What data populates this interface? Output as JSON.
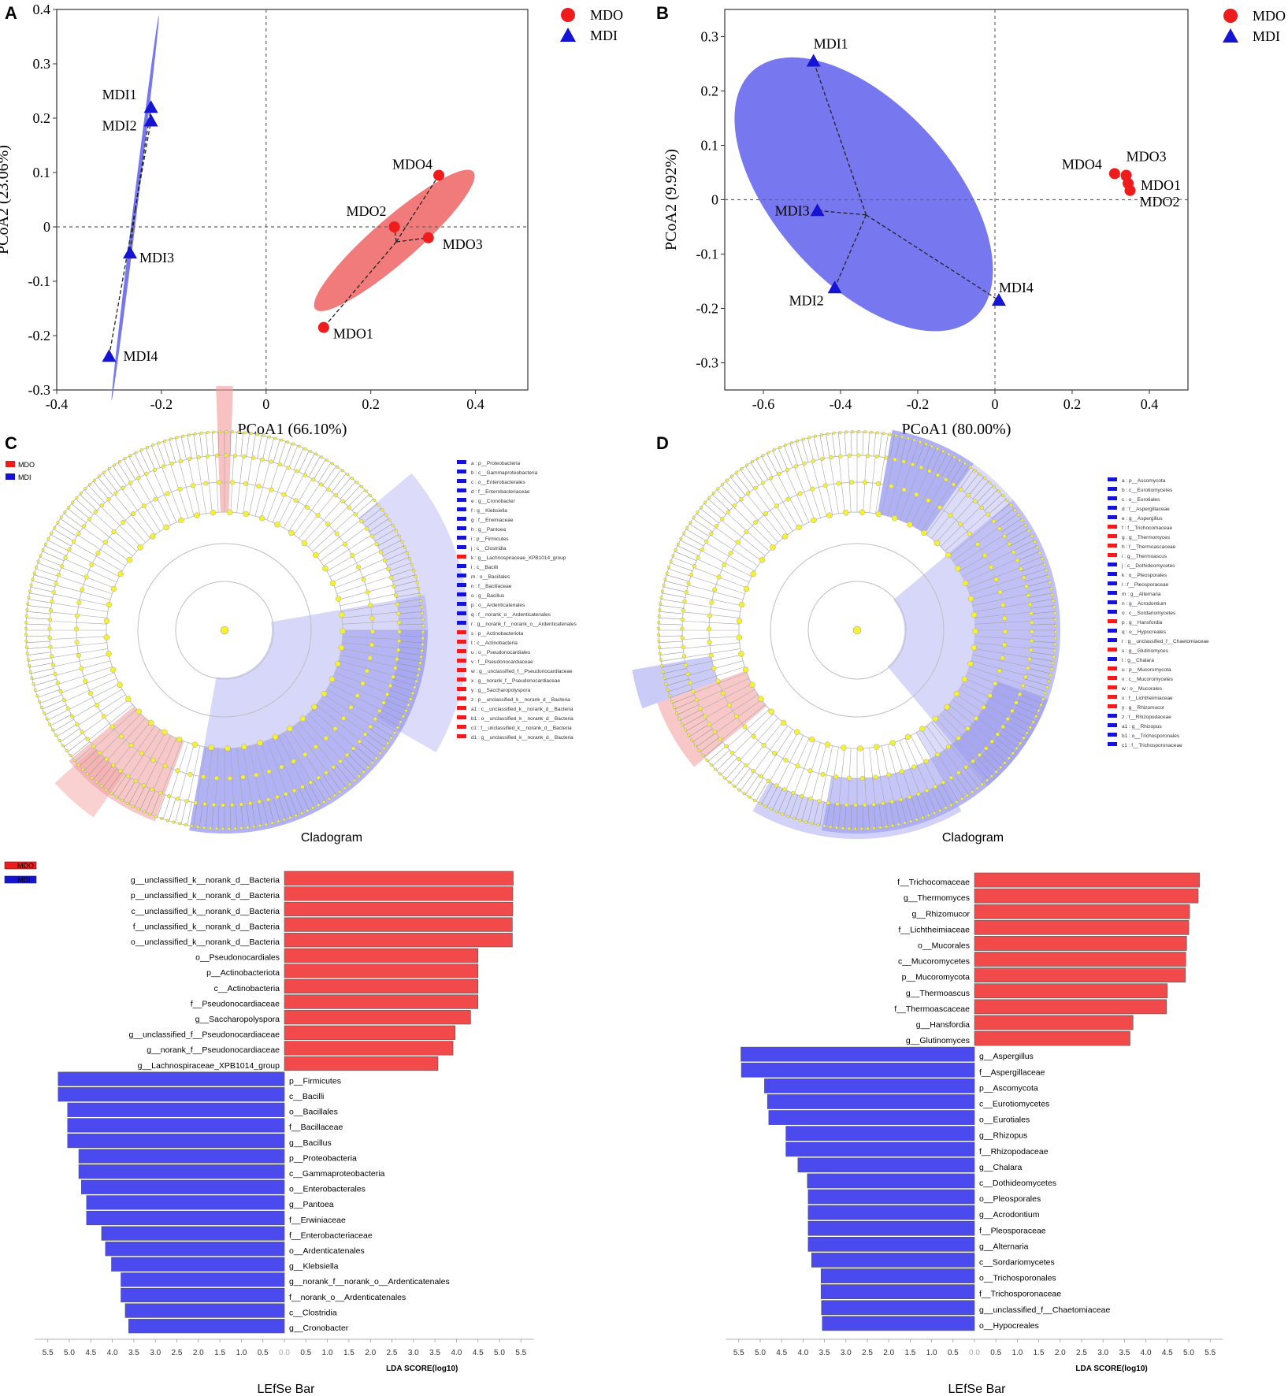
{
  "panels": {
    "A": "A",
    "B": "B",
    "C": "C",
    "D": "D"
  },
  "colors": {
    "mdo": "#ee1c1c",
    "mdi": "#1414d2",
    "mdo_bar": "#f24a4a",
    "mdi_bar": "#4a4aee",
    "ellipse_mdo": "#f07474",
    "ellipse_mdi": "#7070ee",
    "node": "#f5f032"
  },
  "legend": {
    "mdo": "MDO",
    "mdi": "MDI"
  },
  "captions": {
    "cladogram_c": "Cladogram",
    "cladogram_d": "Cladogram",
    "lefse_c": "LEfSe Bar",
    "lefse_d": "LEfSe Bar"
  },
  "cladogram_c_legend": [
    {
      "key": "a",
      "text": "p__Proteobacteria",
      "group": "MDI"
    },
    {
      "key": "b",
      "text": "c__Gammaproteobacteria",
      "group": "MDI"
    },
    {
      "key": "c",
      "text": "o__Enterobacterales",
      "group": "MDI"
    },
    {
      "key": "d",
      "text": "f__Enterobacteriaceae",
      "group": "MDI"
    },
    {
      "key": "e",
      "text": "g__Cronobacter",
      "group": "MDI"
    },
    {
      "key": "f",
      "text": "g__Klebsiella",
      "group": "MDI"
    },
    {
      "key": "g",
      "text": "f__Erwiniaceae",
      "group": "MDI"
    },
    {
      "key": "h",
      "text": "g__Pantoea",
      "group": "MDI"
    },
    {
      "key": "i",
      "text": "p__Firmicutes",
      "group": "MDI"
    },
    {
      "key": "j",
      "text": "c__Clostridia",
      "group": "MDI"
    },
    {
      "key": "k",
      "text": "g__Lachnospiraceae_XPB1014_group",
      "group": "MDO"
    },
    {
      "key": "l",
      "text": "c__Bacilli",
      "group": "MDI"
    },
    {
      "key": "m",
      "text": "o__Bacillales",
      "group": "MDI"
    },
    {
      "key": "n",
      "text": "f__Bacillaceae",
      "group": "MDI"
    },
    {
      "key": "o",
      "text": "g__Bacillus",
      "group": "MDI"
    },
    {
      "key": "p",
      "text": "o__Ardenticatenales",
      "group": "MDI"
    },
    {
      "key": "q",
      "text": "f__norank_o__Ardenticatenales",
      "group": "MDI"
    },
    {
      "key": "r",
      "text": "g__norank_f__norank_o__Ardenticatenales",
      "group": "MDI"
    },
    {
      "key": "s",
      "text": "p__Actinobacteriota",
      "group": "MDO"
    },
    {
      "key": "t",
      "text": "c__Actinobacteria",
      "group": "MDO"
    },
    {
      "key": "u",
      "text": "o__Pseudonocardiales",
      "group": "MDO"
    },
    {
      "key": "v",
      "text": "f__Pseudonocardiaceae",
      "group": "MDO"
    },
    {
      "key": "w",
      "text": "g__unclassified_f__Pseudonocardiaceae",
      "group": "MDO"
    },
    {
      "key": "x",
      "text": "g__norank_f__Pseudonocardiaceae",
      "group": "MDO"
    },
    {
      "key": "y",
      "text": "g__Saccharopolyspora",
      "group": "MDO"
    },
    {
      "key": "z",
      "text": "p__unclassified_k__norank_d__Bacteria",
      "group": "MDO"
    },
    {
      "key": "a1",
      "text": "c__unclassified_k__norank_d__Bacteria",
      "group": "MDO"
    },
    {
      "key": "b1",
      "text": "o__unclassified_k__norank_d__Bacteria",
      "group": "MDO"
    },
    {
      "key": "c1",
      "text": "f__unclassified_k__norank_d__Bacteria",
      "group": "MDO"
    },
    {
      "key": "d1",
      "text": "g__unclassified_k__norank_d__Bacteria",
      "group": "MDO"
    }
  ],
  "cladogram_d_legend": [
    {
      "key": "a",
      "text": "p__Ascomycota",
      "group": "MDI"
    },
    {
      "key": "b",
      "text": "c__Eurotiomycetes",
      "group": "MDI"
    },
    {
      "key": "c",
      "text": "o__Eurotiales",
      "group": "MDI"
    },
    {
      "key": "d",
      "text": "f__Aspergillaceae",
      "group": "MDI"
    },
    {
      "key": "e",
      "text": "g__Aspergillus",
      "group": "MDI"
    },
    {
      "key": "f",
      "text": "f__Trichocomaceae",
      "group": "MDO"
    },
    {
      "key": "g",
      "text": "g__Thermomyces",
      "group": "MDO"
    },
    {
      "key": "h",
      "text": "f__Thermoascaceae",
      "group": "MDO"
    },
    {
      "key": "i",
      "text": "g__Thermoascus",
      "group": "MDO"
    },
    {
      "key": "j",
      "text": "c__Dothideomycetes",
      "group": "MDI"
    },
    {
      "key": "k",
      "text": "o__Pleosporales",
      "group": "MDI"
    },
    {
      "key": "l",
      "text": "f__Pleosporaceae",
      "group": "MDI"
    },
    {
      "key": "m",
      "text": "g__Alternaria",
      "group": "MDI"
    },
    {
      "key": "n",
      "text": "g__Acrodontium",
      "group": "MDI"
    },
    {
      "key": "o",
      "text": "c__Sordariomycetes",
      "group": "MDI"
    },
    {
      "key": "p",
      "text": "g__Hansfordia",
      "group": "MDO"
    },
    {
      "key": "q",
      "text": "o__Hypocreales",
      "group": "MDI"
    },
    {
      "key": "r",
      "text": "g__unclassified_f__Chaetomiaceae",
      "group": "MDI"
    },
    {
      "key": "s",
      "text": "g__Glutinomyces",
      "group": "MDO"
    },
    {
      "key": "t",
      "text": "g__Chalara",
      "group": "MDI"
    },
    {
      "key": "u",
      "text": "p__Mucoromycota",
      "group": "MDO"
    },
    {
      "key": "v",
      "text": "c__Mucoromycetes",
      "group": "MDO"
    },
    {
      "key": "w",
      "text": "o__Mucorales",
      "group": "MDO"
    },
    {
      "key": "x",
      "text": "f__Lichtheimiaceae",
      "group": "MDO"
    },
    {
      "key": "y",
      "text": "g__Rhizomucor",
      "group": "MDO"
    },
    {
      "key": "z",
      "text": "f__Rhizopodaceae",
      "group": "MDI"
    },
    {
      "key": "a1",
      "text": "g__Rhizopus",
      "group": "MDI"
    },
    {
      "key": "b1",
      "text": "o__Trichosporonales",
      "group": "MDI"
    },
    {
      "key": "c1",
      "text": "f__Trichosporonaceae",
      "group": "MDI"
    }
  ],
  "chart_data": [
    {
      "id": "A",
      "type": "scatter",
      "xlabel": "PCoA1 (66.10%)",
      "ylabel": "PCoA2 (23.06%)",
      "xlim": [
        -0.4,
        0.5
      ],
      "ylim": [
        -0.3,
        0.4
      ],
      "xticks": [
        -0.4,
        -0.2,
        0,
        0.2,
        0.4
      ],
      "yticks": [
        -0.3,
        -0.2,
        -0.1,
        0,
        0.1,
        0.2,
        0.3,
        0.4
      ],
      "xtick_labels": [
        "-0.4",
        "-0.2",
        "0",
        "0.2",
        "0.4"
      ],
      "ytick_labels": [
        "-0.3",
        "-0.2",
        "-0.1",
        "0",
        "0.1",
        "0.2",
        "0.3",
        "0.4"
      ],
      "series": [
        {
          "name": "MDO",
          "marker": "circle",
          "points": [
            {
              "label": "MDO1",
              "x": 0.11,
              "y": -0.185
            },
            {
              "label": "MDO2",
              "x": 0.245,
              "y": 0.0
            },
            {
              "label": "MDO3",
              "x": 0.31,
              "y": -0.02
            },
            {
              "label": "MDO4",
              "x": 0.33,
              "y": 0.095
            }
          ],
          "ellipse": {
            "cx": 0.245,
            "cy": -0.025,
            "rx": 0.2,
            "ry": 0.042,
            "angle_deg": 41
          }
        },
        {
          "name": "MDI",
          "marker": "triangle",
          "points": [
            {
              "label": "MDI1",
              "x": -0.22,
              "y": 0.22
            },
            {
              "label": "MDI2",
              "x": -0.22,
              "y": 0.195
            },
            {
              "label": "MDI3",
              "x": -0.26,
              "y": -0.048
            },
            {
              "label": "MDI4",
              "x": -0.3,
              "y": -0.238
            }
          ],
          "ellipse": {
            "cx": -0.25,
            "cy": 0.035,
            "rx": 0.37,
            "ry": 0.004,
            "angle_deg": 83
          }
        }
      ]
    },
    {
      "id": "B",
      "type": "scatter",
      "xlabel": "PCoA1 (80.00%)",
      "ylabel": "PCoA2 (9.92%)",
      "xlim": [
        -0.7,
        0.5
      ],
      "ylim": [
        -0.35,
        0.35
      ],
      "xticks": [
        -0.6,
        -0.4,
        -0.2,
        0,
        0.2,
        0.4
      ],
      "yticks": [
        -0.3,
        -0.2,
        -0.1,
        0,
        0.1,
        0.2,
        0.3
      ],
      "xtick_labels": [
        "-0.6",
        "-0.4",
        "-0.2",
        "0",
        "0.2",
        "0.4"
      ],
      "ytick_labels": [
        "-0.3",
        "-0.2",
        "-0.1",
        "0",
        "0.1",
        "0.2",
        "0.3"
      ],
      "series": [
        {
          "name": "MDO",
          "marker": "circle",
          "points": [
            {
              "label": "MDO1",
              "x": 0.345,
              "y": 0.03
            },
            {
              "label": "MDO2",
              "x": 0.35,
              "y": 0.017
            },
            {
              "label": "MDO3",
              "x": 0.34,
              "y": 0.045
            },
            {
              "label": "MDO4",
              "x": 0.31,
              "y": 0.048
            }
          ]
        },
        {
          "name": "MDI",
          "marker": "triangle",
          "points": [
            {
              "label": "MDI1",
              "x": -0.47,
              "y": 0.255
            },
            {
              "label": "MDI2",
              "x": -0.415,
              "y": -0.162
            },
            {
              "label": "MDI3",
              "x": -0.46,
              "y": -0.02
            },
            {
              "label": "MDI4",
              "x": 0.01,
              "y": -0.185
            }
          ],
          "ellipse": {
            "cx": -0.34,
            "cy": 0.01,
            "rx": 0.43,
            "ry": 0.23,
            "angle_deg": -48
          }
        }
      ]
    },
    {
      "id": "C-bar",
      "type": "bar",
      "orientation": "horizontal",
      "xlabel": "LDA SCORE(log10)",
      "xlim": [
        -5.5,
        5.5
      ],
      "xtick_labels": [
        "5.5",
        "5.0",
        "4.5",
        "4.0",
        "3.5",
        "3.0",
        "2.5",
        "2.0",
        "1.5",
        "1.0",
        "0.5",
        "0.0",
        "0.5",
        "1.0",
        "1.5",
        "2.0",
        "2.5",
        "3.0",
        "3.5",
        "4.0",
        "4.5",
        "5.0",
        "5.5"
      ],
      "series": [
        {
          "name": "MDO",
          "categories": [
            "g__unclassified_k__norank_d__Bacteria",
            "p__unclassified_k__norank_d__Bacteria",
            "c__unclassified_k__norank_d__Bacteria",
            "f__unclassified_k__norank_d__Bacteria",
            "o__unclassified_k__norank_d__Bacteria",
            "o__Pseudonocardiales",
            "p__Actinobacteriota",
            "c__Actinobacteria",
            "f__Pseudonocardiaceae",
            "g__Saccharopolyspora",
            "g__unclassified_f__Pseudonocardiaceae",
            "g__norank_f__Pseudonocardiaceae",
            "g__Lachnospiraceae_XPB1014_group"
          ],
          "values": [
            5.32,
            5.31,
            5.31,
            5.3,
            5.3,
            4.5,
            4.5,
            4.5,
            4.5,
            4.33,
            3.97,
            3.92,
            3.57
          ]
        },
        {
          "name": "MDI",
          "categories": [
            "p__Firmicutes",
            "c__Bacilli",
            "o__Bacillales",
            "f__Bacillaceae",
            "g__Bacillus",
            "p__Proteobacteria",
            "c__Gammaproteobacteria",
            "o__Enterobacterales",
            "g__Pantoea",
            "f__Erwiniaceae",
            "f__Enterobacteriaceae",
            "o__Ardenticatenales",
            "g__Klebsiella",
            "g__norank_f__norank_o__Ardenticatenales",
            "f__norank_o__Ardenticatenales",
            "c__Clostridia",
            "g__Cronobacter"
          ],
          "values": [
            5.26,
            5.26,
            5.04,
            5.04,
            5.04,
            4.78,
            4.78,
            4.72,
            4.6,
            4.6,
            4.25,
            4.16,
            4.02,
            3.8,
            3.8,
            3.7,
            3.62
          ]
        }
      ]
    },
    {
      "id": "D-bar",
      "type": "bar",
      "orientation": "horizontal",
      "xlabel": "LDA SCORE(log10)",
      "xlim": [
        -5.5,
        5.5
      ],
      "xtick_labels": [
        "5.5",
        "5.0",
        "4.5",
        "4.0",
        "3.5",
        "3.0",
        "2.5",
        "2.0",
        "1.5",
        "1.0",
        "0.5",
        "0.0",
        "0.5",
        "1.0",
        "1.5",
        "2.0",
        "2.5",
        "3.0",
        "3.5",
        "4.0",
        "4.5",
        "5.0",
        "5.5"
      ],
      "series": [
        {
          "name": "MDO",
          "categories": [
            "f__Trichocomaceae",
            "g__Thermomyces",
            "g__Rhizomucor",
            "f__Lichtheimiaceae",
            "o__Mucorales",
            "c__Mucoromycetes",
            "p__Mucoromycota",
            "g__Thermoascus",
            "f__Thermoascaceae",
            "g__Hansfordia",
            "g__Glutinomyces"
          ],
          "values": [
            5.25,
            5.22,
            5.02,
            5.0,
            4.95,
            4.93,
            4.92,
            4.5,
            4.48,
            3.7,
            3.63
          ]
        },
        {
          "name": "MDI",
          "categories": [
            "g__Aspergillus",
            "f__Aspergillaceae",
            "p__Ascomycota",
            "c__Eurotiomycetes",
            "o__Eurotiales",
            "g__Rhizopus",
            "f__Rhizopodaceae",
            "g__Chalara",
            "c__Dothideomycetes",
            "o__Pleosporales",
            "g__Acrodontium",
            "f__Pleosporaceae",
            "g__Alternaria",
            "c__Sordariomycetes",
            "o__Trichosporonales",
            "f__Trichosporonaceae",
            "g__unclassified_f__Chaetomiaceae",
            "o__Hypocreales"
          ],
          "values": [
            5.45,
            5.44,
            4.9,
            4.83,
            4.8,
            4.4,
            4.4,
            4.12,
            3.9,
            3.88,
            3.88,
            3.88,
            3.88,
            3.8,
            3.58,
            3.58,
            3.57,
            3.55
          ]
        }
      ]
    }
  ]
}
